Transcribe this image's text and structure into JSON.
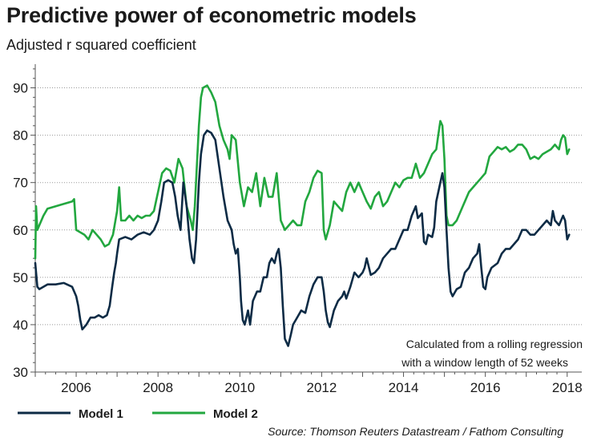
{
  "header": {
    "title": "Predictive power of econometric models",
    "subtitle": "Adjusted r squared coefficient"
  },
  "footer": {
    "source": "Source: Thomson Reuters Datastream / Fathom Consulting"
  },
  "annotation": {
    "line1": "Calculated from a rolling regression",
    "line2": "with a window length of 52 weeks"
  },
  "chart_data": {
    "type": "line",
    "title": "Predictive power of econometric models",
    "subtitle": "Adjusted r squared coefficient",
    "xlabel": "",
    "ylabel": "",
    "xlim": [
      2005.0,
      2018.2
    ],
    "ylim": [
      30,
      95
    ],
    "x_ticks": [
      2006,
      2008,
      2010,
      2012,
      2014,
      2016,
      2018
    ],
    "x_tick_labels": [
      "2006",
      "2008",
      "2010",
      "2012",
      "2014",
      "2016",
      "2018"
    ],
    "y_ticks": [
      30,
      40,
      50,
      60,
      70,
      80,
      90
    ],
    "y_tick_labels": [
      "30",
      "40",
      "50",
      "60",
      "70",
      "80",
      "90"
    ],
    "grid": {
      "horizontal": true,
      "style": "dotted"
    },
    "legend": "bottom-left",
    "colors": {
      "model1": "#0d2b45",
      "model2": "#22a73f",
      "grid": "#9a9a9a",
      "axis": "#555555"
    },
    "series": [
      {
        "name": "Model 1",
        "color": "#0d2b45",
        "points": [
          [
            2005.0,
            53
          ],
          [
            2005.05,
            48
          ],
          [
            2005.1,
            47.5
          ],
          [
            2005.3,
            48.5
          ],
          [
            2005.5,
            48.5
          ],
          [
            2005.7,
            48.8
          ],
          [
            2005.9,
            48
          ],
          [
            2006.0,
            46
          ],
          [
            2006.05,
            44
          ],
          [
            2006.1,
            41
          ],
          [
            2006.15,
            39
          ],
          [
            2006.25,
            40
          ],
          [
            2006.35,
            41.5
          ],
          [
            2006.45,
            41.5
          ],
          [
            2006.55,
            42
          ],
          [
            2006.65,
            41.5
          ],
          [
            2006.75,
            42
          ],
          [
            2006.82,
            44
          ],
          [
            2006.88,
            48
          ],
          [
            2006.93,
            51
          ],
          [
            2006.97,
            53
          ],
          [
            2007.0,
            55
          ],
          [
            2007.05,
            58
          ],
          [
            2007.2,
            58.5
          ],
          [
            2007.35,
            58
          ],
          [
            2007.5,
            59
          ],
          [
            2007.65,
            59.5
          ],
          [
            2007.8,
            59
          ],
          [
            2007.9,
            60
          ],
          [
            2008.0,
            62
          ],
          [
            2008.08,
            66
          ],
          [
            2008.15,
            70
          ],
          [
            2008.25,
            70.5
          ],
          [
            2008.35,
            70
          ],
          [
            2008.42,
            67
          ],
          [
            2008.48,
            63
          ],
          [
            2008.55,
            60
          ],
          [
            2008.62,
            70
          ],
          [
            2008.7,
            65
          ],
          [
            2008.77,
            58
          ],
          [
            2008.83,
            54
          ],
          [
            2008.88,
            53
          ],
          [
            2008.93,
            58
          ],
          [
            2009.0,
            70
          ],
          [
            2009.05,
            76
          ],
          [
            2009.12,
            80
          ],
          [
            2009.2,
            81
          ],
          [
            2009.3,
            80.5
          ],
          [
            2009.4,
            79
          ],
          [
            2009.5,
            73
          ],
          [
            2009.6,
            67
          ],
          [
            2009.7,
            62
          ],
          [
            2009.8,
            60
          ],
          [
            2009.85,
            57
          ],
          [
            2009.9,
            55
          ],
          [
            2009.95,
            56
          ],
          [
            2010.0,
            50
          ],
          [
            2010.03,
            45
          ],
          [
            2010.07,
            41
          ],
          [
            2010.12,
            40
          ],
          [
            2010.2,
            43
          ],
          [
            2010.25,
            40
          ],
          [
            2010.32,
            45
          ],
          [
            2010.42,
            47
          ],
          [
            2010.5,
            47
          ],
          [
            2010.58,
            50
          ],
          [
            2010.66,
            50
          ],
          [
            2010.72,
            53
          ],
          [
            2010.78,
            54
          ],
          [
            2010.85,
            53
          ],
          [
            2010.9,
            55
          ],
          [
            2010.95,
            56
          ],
          [
            2011.0,
            52
          ],
          [
            2011.05,
            44
          ],
          [
            2011.1,
            37
          ],
          [
            2011.18,
            35.5
          ],
          [
            2011.25,
            38
          ],
          [
            2011.3,
            40
          ],
          [
            2011.4,
            41.5
          ],
          [
            2011.5,
            43
          ],
          [
            2011.6,
            42.5
          ],
          [
            2011.7,
            46
          ],
          [
            2011.8,
            48.5
          ],
          [
            2011.9,
            50
          ],
          [
            2012.0,
            50
          ],
          [
            2012.05,
            47
          ],
          [
            2012.1,
            43
          ],
          [
            2012.15,
            40.5
          ],
          [
            2012.2,
            39.5
          ],
          [
            2012.3,
            43
          ],
          [
            2012.4,
            45
          ],
          [
            2012.5,
            46
          ],
          [
            2012.55,
            47
          ],
          [
            2012.6,
            45.5
          ],
          [
            2012.7,
            48
          ],
          [
            2012.8,
            51
          ],
          [
            2012.9,
            50
          ],
          [
            2013.0,
            51
          ],
          [
            2013.05,
            52
          ],
          [
            2013.1,
            54
          ],
          [
            2013.2,
            50.5
          ],
          [
            2013.3,
            51
          ],
          [
            2013.4,
            52
          ],
          [
            2013.5,
            54
          ],
          [
            2013.6,
            55
          ],
          [
            2013.7,
            56
          ],
          [
            2013.8,
            56
          ],
          [
            2013.9,
            58
          ],
          [
            2014.0,
            60
          ],
          [
            2014.1,
            60
          ],
          [
            2014.2,
            63
          ],
          [
            2014.3,
            65
          ],
          [
            2014.35,
            62.5
          ],
          [
            2014.45,
            63.5
          ],
          [
            2014.5,
            57.5
          ],
          [
            2014.55,
            57
          ],
          [
            2014.6,
            59
          ],
          [
            2014.7,
            58.5
          ],
          [
            2014.75,
            60.5
          ],
          [
            2014.8,
            66
          ],
          [
            2014.9,
            70
          ],
          [
            2014.95,
            72
          ],
          [
            2015.0,
            69
          ],
          [
            2015.05,
            60
          ],
          [
            2015.1,
            52
          ],
          [
            2015.15,
            47
          ],
          [
            2015.2,
            46
          ],
          [
            2015.3,
            47.5
          ],
          [
            2015.4,
            48
          ],
          [
            2015.5,
            51
          ],
          [
            2015.6,
            52
          ],
          [
            2015.7,
            54
          ],
          [
            2015.8,
            55
          ],
          [
            2015.85,
            57
          ],
          [
            2015.9,
            52
          ],
          [
            2015.95,
            48
          ],
          [
            2016.0,
            47.5
          ],
          [
            2016.05,
            50
          ],
          [
            2016.15,
            52
          ],
          [
            2016.3,
            53
          ],
          [
            2016.4,
            55
          ],
          [
            2016.5,
            56
          ],
          [
            2016.6,
            56
          ],
          [
            2016.7,
            57
          ],
          [
            2016.8,
            58
          ],
          [
            2016.9,
            60
          ],
          [
            2017.0,
            60
          ],
          [
            2017.1,
            59
          ],
          [
            2017.2,
            59
          ],
          [
            2017.3,
            60
          ],
          [
            2017.4,
            61
          ],
          [
            2017.5,
            62
          ],
          [
            2017.6,
            61
          ],
          [
            2017.65,
            64
          ],
          [
            2017.7,
            62
          ],
          [
            2017.8,
            61
          ],
          [
            2017.9,
            63
          ],
          [
            2017.95,
            62
          ],
          [
            2018.0,
            58
          ],
          [
            2018.05,
            59
          ]
        ]
      },
      {
        "name": "Model 2",
        "color": "#22a73f",
        "points": [
          [
            2005.0,
            54
          ],
          [
            2005.02,
            65
          ],
          [
            2005.05,
            60
          ],
          [
            2005.1,
            61
          ],
          [
            2005.2,
            63
          ],
          [
            2005.3,
            64.5
          ],
          [
            2005.5,
            65
          ],
          [
            2005.7,
            65.5
          ],
          [
            2005.9,
            66
          ],
          [
            2005.95,
            66.5
          ],
          [
            2006.0,
            60
          ],
          [
            2006.1,
            59.5
          ],
          [
            2006.2,
            59
          ],
          [
            2006.3,
            58
          ],
          [
            2006.4,
            60
          ],
          [
            2006.5,
            59
          ],
          [
            2006.6,
            58
          ],
          [
            2006.7,
            56.5
          ],
          [
            2006.8,
            57
          ],
          [
            2006.9,
            59
          ],
          [
            2007.0,
            64
          ],
          [
            2007.05,
            69
          ],
          [
            2007.1,
            62
          ],
          [
            2007.2,
            62
          ],
          [
            2007.3,
            63
          ],
          [
            2007.4,
            62
          ],
          [
            2007.5,
            63
          ],
          [
            2007.6,
            62.5
          ],
          [
            2007.7,
            63
          ],
          [
            2007.8,
            63
          ],
          [
            2007.9,
            64
          ],
          [
            2008.0,
            68
          ],
          [
            2008.1,
            72
          ],
          [
            2008.2,
            73
          ],
          [
            2008.3,
            72.5
          ],
          [
            2008.4,
            70
          ],
          [
            2008.5,
            75
          ],
          [
            2008.6,
            73
          ],
          [
            2008.7,
            65
          ],
          [
            2008.8,
            62
          ],
          [
            2008.85,
            60
          ],
          [
            2008.9,
            65
          ],
          [
            2009.0,
            82
          ],
          [
            2009.05,
            88
          ],
          [
            2009.1,
            90
          ],
          [
            2009.2,
            90.5
          ],
          [
            2009.3,
            89
          ],
          [
            2009.4,
            87
          ],
          [
            2009.5,
            82
          ],
          [
            2009.6,
            79
          ],
          [
            2009.7,
            77
          ],
          [
            2009.75,
            75
          ],
          [
            2009.8,
            80
          ],
          [
            2009.9,
            79
          ],
          [
            2010.0,
            70
          ],
          [
            2010.1,
            65
          ],
          [
            2010.2,
            69
          ],
          [
            2010.3,
            68
          ],
          [
            2010.4,
            72
          ],
          [
            2010.5,
            65
          ],
          [
            2010.6,
            71
          ],
          [
            2010.7,
            67
          ],
          [
            2010.8,
            67
          ],
          [
            2010.9,
            72
          ],
          [
            2011.0,
            62
          ],
          [
            2011.1,
            60
          ],
          [
            2011.2,
            61
          ],
          [
            2011.3,
            62
          ],
          [
            2011.4,
            61
          ],
          [
            2011.5,
            61
          ],
          [
            2011.6,
            66
          ],
          [
            2011.7,
            68
          ],
          [
            2011.8,
            71
          ],
          [
            2011.9,
            72.5
          ],
          [
            2012.0,
            72
          ],
          [
            2012.05,
            60
          ],
          [
            2012.1,
            58
          ],
          [
            2012.2,
            61
          ],
          [
            2012.3,
            66
          ],
          [
            2012.4,
            65
          ],
          [
            2012.5,
            64
          ],
          [
            2012.6,
            68
          ],
          [
            2012.7,
            70
          ],
          [
            2012.8,
            68
          ],
          [
            2012.9,
            70
          ],
          [
            2013.0,
            68
          ],
          [
            2013.1,
            66
          ],
          [
            2013.2,
            64.5
          ],
          [
            2013.3,
            67
          ],
          [
            2013.4,
            68
          ],
          [
            2013.5,
            65
          ],
          [
            2013.6,
            66
          ],
          [
            2013.7,
            68
          ],
          [
            2013.8,
            70
          ],
          [
            2013.9,
            69
          ],
          [
            2014.0,
            70.5
          ],
          [
            2014.1,
            71
          ],
          [
            2014.2,
            71
          ],
          [
            2014.3,
            74
          ],
          [
            2014.4,
            71
          ],
          [
            2014.5,
            72
          ],
          [
            2014.6,
            74
          ],
          [
            2014.7,
            76
          ],
          [
            2014.8,
            77
          ],
          [
            2014.85,
            80
          ],
          [
            2014.9,
            83
          ],
          [
            2014.95,
            82
          ],
          [
            2015.0,
            75
          ],
          [
            2015.05,
            63
          ],
          [
            2015.1,
            61
          ],
          [
            2015.2,
            61
          ],
          [
            2015.3,
            62
          ],
          [
            2015.4,
            64
          ],
          [
            2015.5,
            66
          ],
          [
            2015.6,
            68
          ],
          [
            2015.7,
            69
          ],
          [
            2015.8,
            70
          ],
          [
            2015.9,
            71
          ],
          [
            2016.0,
            72
          ],
          [
            2016.1,
            75.5
          ],
          [
            2016.2,
            76.5
          ],
          [
            2016.3,
            77.5
          ],
          [
            2016.4,
            77
          ],
          [
            2016.5,
            77.5
          ],
          [
            2016.6,
            76.5
          ],
          [
            2016.7,
            77
          ],
          [
            2016.8,
            78
          ],
          [
            2016.9,
            78
          ],
          [
            2017.0,
            77
          ],
          [
            2017.1,
            75
          ],
          [
            2017.2,
            75.5
          ],
          [
            2017.3,
            75
          ],
          [
            2017.4,
            76
          ],
          [
            2017.5,
            76.5
          ],
          [
            2017.6,
            77
          ],
          [
            2017.7,
            78
          ],
          [
            2017.8,
            77
          ],
          [
            2017.85,
            79
          ],
          [
            2017.9,
            80
          ],
          [
            2017.95,
            79.5
          ],
          [
            2018.0,
            76
          ],
          [
            2018.05,
            77
          ]
        ]
      }
    ]
  }
}
